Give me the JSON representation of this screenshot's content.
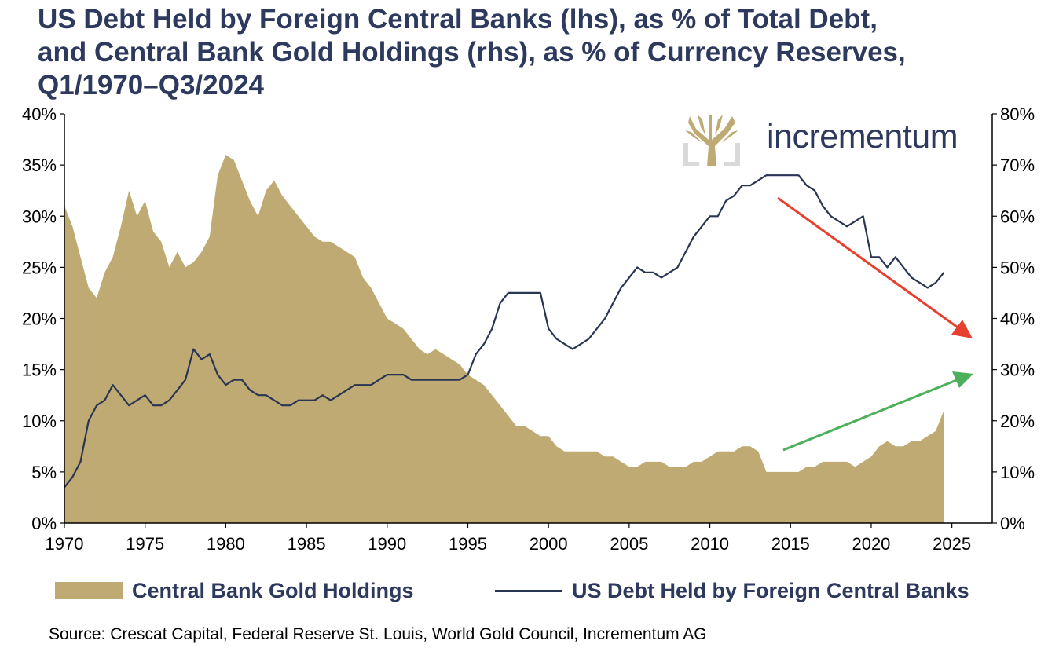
{
  "title_lines": [
    "US Debt Held by Foreign Central Banks (lhs), as % of Total Debt,",
    "and Central Bank Gold Holdings (rhs), as % of Currency Reserves,",
    "Q1/1970–Q3/2024"
  ],
  "logo": {
    "text": "incrementum",
    "icon": "tree-icon"
  },
  "source": "Source: Crescat Capital, Federal Reserve St. Louis, World Gold Council, Incrementum AG",
  "colors": {
    "title": "#2d3a5e",
    "gold": "#bfaa74",
    "line": "#283553",
    "down_arrow": "#e8402e",
    "up_arrow": "#4caf5a"
  },
  "chart_data": {
    "type": "area",
    "x_axis": {
      "min": 1970,
      "max": 2027.5,
      "ticks": [
        1970,
        1975,
        1980,
        1985,
        1990,
        1995,
        2000,
        2005,
        2010,
        2015,
        2020,
        2025
      ]
    },
    "y_left": {
      "min": 0,
      "max": 40,
      "ticks": [
        0,
        5,
        10,
        15,
        20,
        25,
        30,
        35,
        40
      ],
      "tick_labels": [
        "0%",
        "5%",
        "10%",
        "15%",
        "20%",
        "25%",
        "30%",
        "35%",
        "40%"
      ]
    },
    "y_right": {
      "min": 0,
      "max": 80,
      "ticks": [
        0,
        10,
        20,
        30,
        40,
        50,
        60,
        70,
        80
      ],
      "tick_labels": [
        "0%",
        "10%",
        "20%",
        "30%",
        "40%",
        "50%",
        "60%",
        "70%",
        "80%"
      ]
    },
    "grid": false,
    "legend_position": "bottom",
    "series": [
      {
        "name": "Central Bank Gold Holdings",
        "type": "area",
        "axis": "right",
        "x": [
          1970,
          1970.5,
          1971,
          1971.5,
          1972,
          1972.5,
          1973,
          1973.5,
          1974,
          1974.5,
          1975,
          1975.5,
          1976,
          1976.5,
          1977,
          1977.5,
          1978,
          1978.5,
          1979,
          1979.5,
          1980,
          1980.5,
          1981,
          1981.5,
          1982,
          1982.5,
          1983,
          1983.5,
          1984,
          1984.5,
          1985,
          1985.5,
          1986,
          1986.5,
          1987,
          1987.5,
          1988,
          1988.5,
          1989,
          1989.5,
          1990,
          1990.5,
          1991,
          1991.5,
          1992,
          1992.5,
          1993,
          1993.5,
          1994,
          1994.5,
          1995,
          1995.5,
          1996,
          1996.5,
          1997,
          1997.5,
          1998,
          1998.5,
          1999,
          1999.5,
          2000,
          2000.5,
          2001,
          2001.5,
          2002,
          2002.5,
          2003,
          2003.5,
          2004,
          2004.5,
          2005,
          2005.5,
          2006,
          2006.5,
          2007,
          2007.5,
          2008,
          2008.5,
          2009,
          2009.5,
          2010,
          2010.5,
          2011,
          2011.5,
          2012,
          2012.5,
          2013,
          2013.5,
          2014,
          2014.5,
          2015,
          2015.5,
          2016,
          2016.5,
          2017,
          2017.5,
          2018,
          2018.5,
          2019,
          2019.5,
          2020,
          2020.5,
          2021,
          2021.5,
          2022,
          2022.5,
          2023,
          2023.5,
          2024,
          2024.5
        ],
        "values": [
          62,
          58,
          52,
          46,
          44,
          49,
          52,
          58,
          65,
          60,
          63,
          57,
          55,
          50,
          53,
          50,
          51,
          53,
          56,
          68,
          72,
          71,
          67,
          63,
          60,
          65,
          67,
          64,
          62,
          60,
          58,
          56,
          55,
          55,
          54,
          53,
          52,
          48,
          46,
          43,
          40,
          39,
          38,
          36,
          34,
          33,
          34,
          33,
          32,
          31,
          29,
          28,
          27,
          25,
          23,
          21,
          19,
          19,
          18,
          17,
          17,
          15,
          14,
          14,
          14,
          14,
          14,
          13,
          13,
          12,
          11,
          11,
          12,
          12,
          12,
          11,
          11,
          11,
          12,
          12,
          13,
          14,
          14,
          14,
          15,
          15,
          14,
          10,
          10,
          10,
          10,
          10,
          11,
          11,
          12,
          12,
          12,
          12,
          11,
          12,
          13,
          15,
          16,
          15,
          15,
          16,
          16,
          17,
          18,
          22
        ]
      },
      {
        "name": "US Debt Held by Foreign Central Banks",
        "type": "line",
        "axis": "left",
        "x": [
          1970,
          1970.5,
          1971,
          1971.5,
          1972,
          1972.5,
          1973,
          1973.5,
          1974,
          1974.5,
          1975,
          1975.5,
          1976,
          1976.5,
          1977,
          1977.5,
          1978,
          1978.5,
          1979,
          1979.5,
          1980,
          1980.5,
          1981,
          1981.5,
          1982,
          1982.5,
          1983,
          1983.5,
          1984,
          1984.5,
          1985,
          1985.5,
          1986,
          1986.5,
          1987,
          1987.5,
          1988,
          1988.5,
          1989,
          1989.5,
          1990,
          1990.5,
          1991,
          1991.5,
          1992,
          1992.5,
          1993,
          1993.5,
          1994,
          1994.5,
          1995,
          1995.5,
          1996,
          1996.5,
          1997,
          1997.5,
          1998,
          1998.5,
          1999,
          1999.5,
          2000,
          2000.5,
          2001,
          2001.5,
          2002,
          2002.5,
          2003,
          2003.5,
          2004,
          2004.5,
          2005,
          2005.5,
          2006,
          2006.5,
          2007,
          2007.5,
          2008,
          2008.5,
          2009,
          2009.5,
          2010,
          2010.5,
          2011,
          2011.5,
          2012,
          2012.5,
          2013,
          2013.5,
          2014,
          2014.5,
          2015,
          2015.5,
          2016,
          2016.5,
          2017,
          2017.5,
          2018,
          2018.5,
          2019,
          2019.5,
          2020,
          2020.5,
          2021,
          2021.5,
          2022,
          2022.5,
          2023,
          2023.5,
          2024,
          2024.5
        ],
        "values": [
          3.5,
          4.5,
          6,
          10,
          11.5,
          12,
          13.5,
          12.5,
          11.5,
          12,
          12.5,
          11.5,
          11.5,
          12,
          13,
          14,
          17,
          16,
          16.5,
          14.5,
          13.5,
          14,
          14,
          13,
          12.5,
          12.5,
          12,
          11.5,
          11.5,
          12,
          12,
          12,
          12.5,
          12,
          12.5,
          13,
          13.5,
          13.5,
          13.5,
          14,
          14.5,
          14.5,
          14.5,
          14,
          14,
          14,
          14,
          14,
          14,
          14,
          14.5,
          16.5,
          17.5,
          19,
          21.5,
          22.5,
          22.5,
          22.5,
          22.5,
          22.5,
          19,
          18,
          17.5,
          17,
          17.5,
          18,
          19,
          20,
          21.5,
          23,
          24,
          25,
          24.5,
          24.5,
          24,
          24.5,
          25,
          26.5,
          28,
          29,
          30,
          30,
          31.5,
          32,
          33,
          33,
          33.5,
          34,
          34,
          34,
          34,
          34,
          33,
          32.5,
          31,
          30,
          29.5,
          29,
          29.5,
          30,
          26,
          26,
          25,
          26,
          25,
          24,
          23.5,
          23,
          23.5,
          24.5
        ]
      }
    ],
    "annotations": [
      {
        "type": "arrow",
        "color": "red",
        "direction": "down"
      },
      {
        "type": "arrow",
        "color": "green",
        "direction": "up"
      }
    ]
  },
  "legend": [
    {
      "label": "Central Bank Gold Holdings",
      "swatch": "area"
    },
    {
      "label": "US Debt Held by Foreign Central Banks",
      "swatch": "line"
    }
  ]
}
